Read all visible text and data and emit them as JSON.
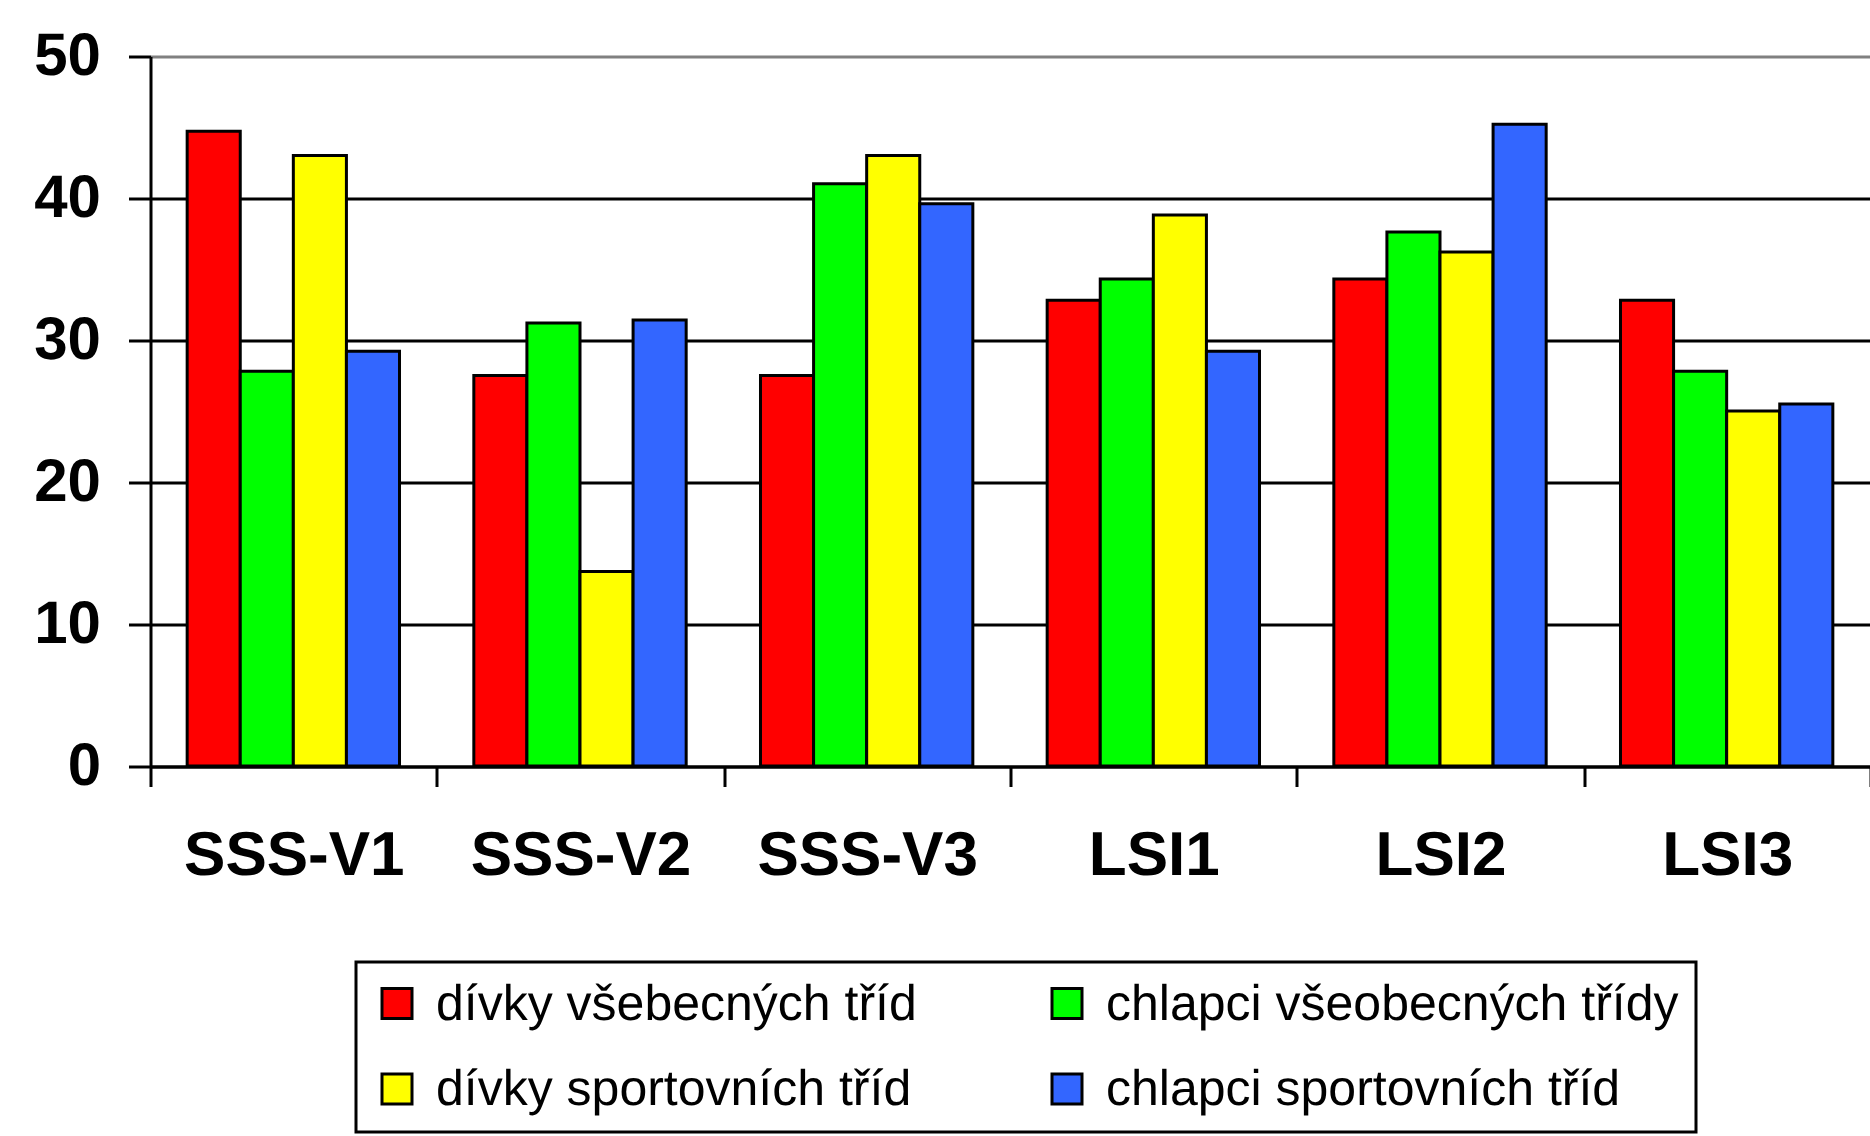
{
  "chart_data": {
    "type": "bar",
    "categories": [
      "SSS-V1",
      "SSS-V2",
      "SSS-V3",
      "LSI1",
      "LSI2",
      "LSI3"
    ],
    "series": [
      {
        "name": "dívky všebecných tříd",
        "color": "#ff0000",
        "values": [
          44.7,
          27.5,
          27.5,
          32.8,
          34.3,
          32.8
        ]
      },
      {
        "name": "chlapci všeobecných třídy",
        "color": "#00ff00",
        "values": [
          27.8,
          31.2,
          41.0,
          34.3,
          37.6,
          27.8
        ]
      },
      {
        "name": "dívky sportovních tříd",
        "color": "#ffff00",
        "values": [
          43.0,
          13.7,
          43.0,
          38.8,
          36.2,
          25.0
        ]
      },
      {
        "name": "chlapci sportovních tříd",
        "color": "#3366ff",
        "values": [
          29.2,
          31.4,
          39.6,
          29.2,
          45.2,
          25.5
        ]
      }
    ],
    "ylim": [
      0,
      50
    ],
    "yticks": [
      0,
      10,
      20,
      30,
      40,
      50
    ],
    "grid": "y",
    "legend": "bottom"
  }
}
